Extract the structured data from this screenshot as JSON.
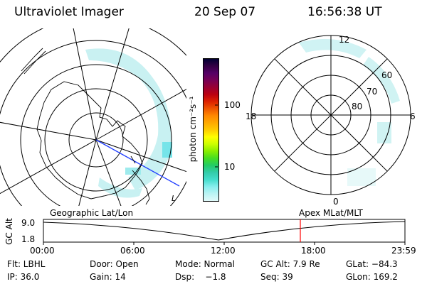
{
  "header": {
    "title": "Ultraviolet Imager",
    "date": "20 Sep 07",
    "time": "16:56:38 UT"
  },
  "colorbar": {
    "label": "photon cm⁻²s⁻¹",
    "ticks": [
      "100",
      "10"
    ],
    "colors": [
      "#000033",
      "#330044",
      "#550066",
      "#770055",
      "#990033",
      "#bb0011",
      "#dd2200",
      "#ee5500",
      "#ff8800",
      "#ffaa00",
      "#ffcc00",
      "#ffff00",
      "#ccff00",
      "#88ee00",
      "#44dd22",
      "#22cc66",
      "#33ccaa",
      "#44ddcc",
      "#88eeee",
      "#bbf4f4",
      "#e0fafa"
    ]
  },
  "right_map": {
    "mlt_labels": {
      "top": "12",
      "left": "18",
      "right": "6",
      "bottom": "0"
    },
    "lat_labels": [
      "60",
      "70",
      "80"
    ]
  },
  "left_map": {
    "corner_label": "L"
  },
  "timeline": {
    "left_title": "Geographic Lat/Lon",
    "right_title": "Apex MLat/MLT",
    "y_axis": "GC Alt",
    "y_ticks": [
      "9.0",
      "1.8"
    ],
    "x_ticks": [
      "00:00",
      "06:00",
      "12:00",
      "18:00",
      "23:59"
    ],
    "marker_color": "#ff0000"
  },
  "info": {
    "flt": "Flt: LBHL",
    "door": "Door: Open",
    "mode": "Mode: Normal",
    "gc_alt": "GC Alt: 7.9 Re",
    "glat": "GLat: −84.3",
    "ip": "IP: 36.0",
    "gain": "Gain: 14",
    "dsp": "Dsp:    −1.8",
    "seq": "Seq: 39",
    "glon": "GLon: 169.2"
  }
}
